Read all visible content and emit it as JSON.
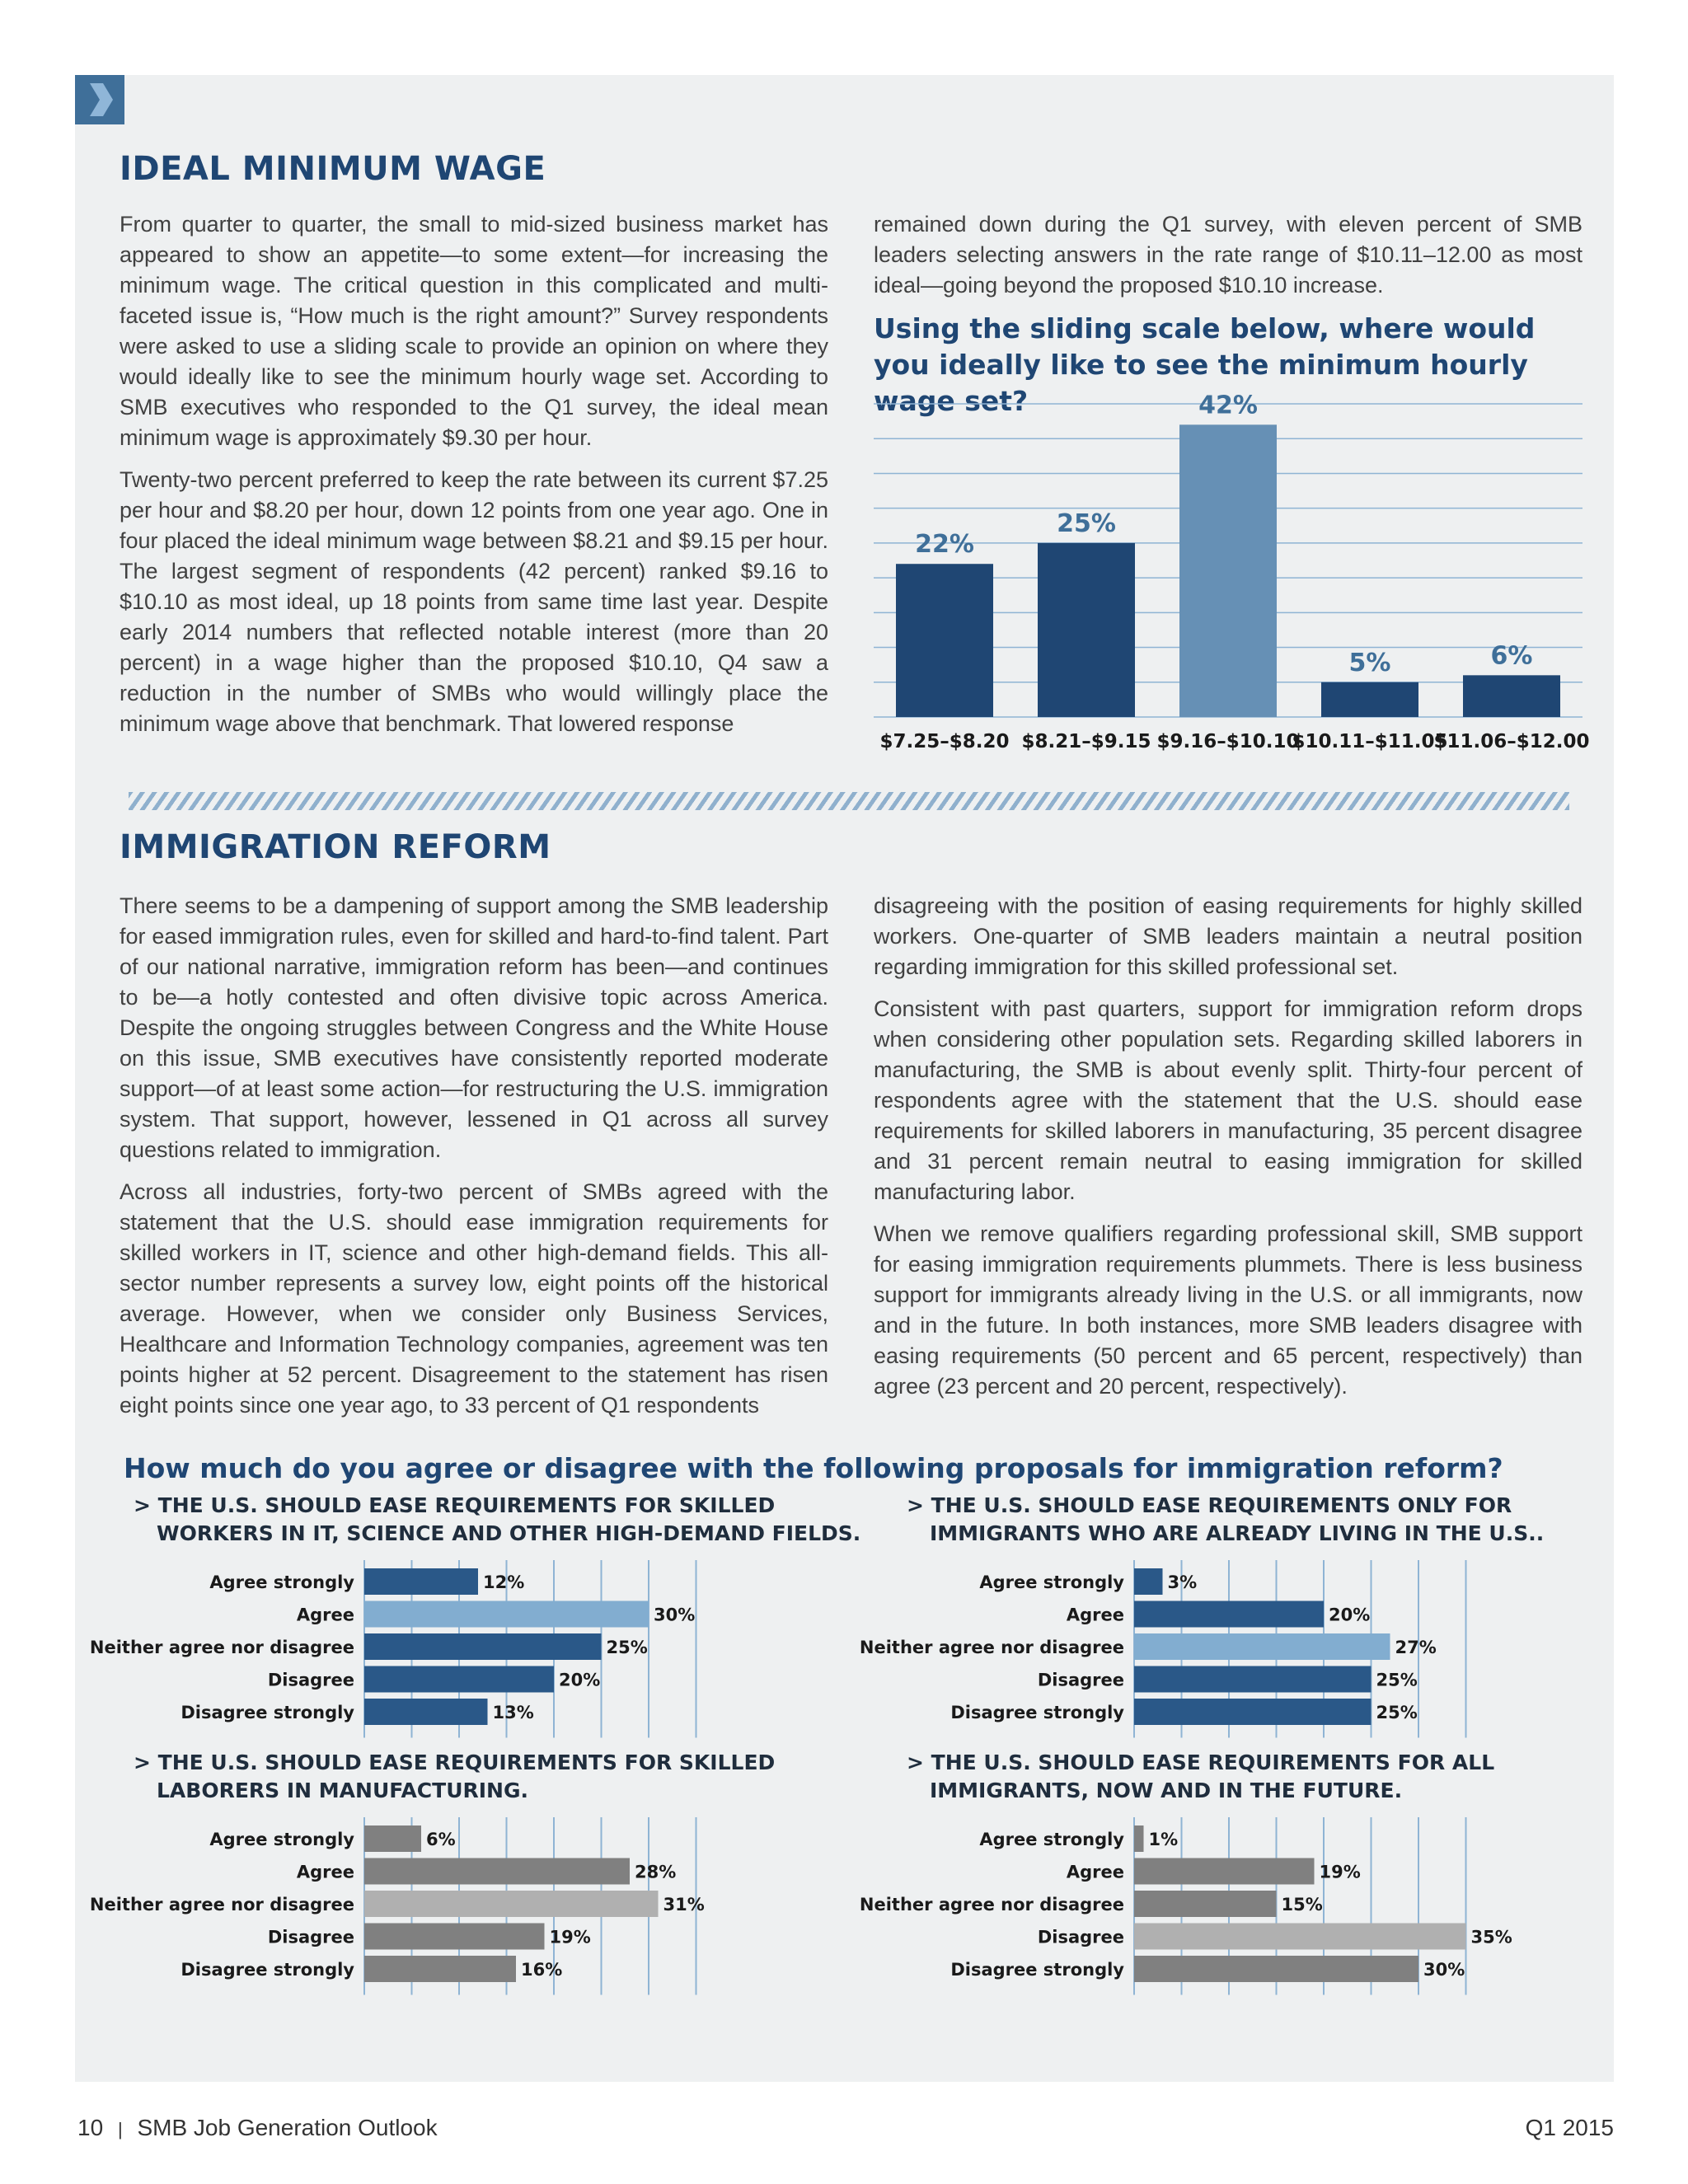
{
  "section1": {
    "title": "IDEAL MINIMUM WAGE",
    "col1": [
      "From quarter to quarter, the small to mid-sized business market has appeared to show an appetite—to some extent—for increasing the minimum wage. The critical question in this complicated and multi-faceted issue is, “How much is the right amount?” Survey respondents were asked to use a sliding scale to provide an opinion on where they would ideally like to see the minimum hourly wage set. According to SMB executives who responded to the Q1 survey, the ideal mean minimum wage is approximately $9.30 per hour.",
      "Twenty-two percent preferred to keep the rate between its current $7.25 per hour and $8.20 per hour, down 12 points from one year ago. One in four placed the ideal minimum wage between $8.21 and $9.15 per hour. The largest segment of respondents (42 percent) ranked $9.16 to $10.10 as most ideal, up 18 points from same time last year. Despite early 2014 numbers that reflected notable interest (more than 20 percent) in a wage higher than the proposed $10.10, Q4 saw a reduction in the number of SMBs who would willingly place the minimum wage above that benchmark. That lowered response"
    ],
    "col2": "remained down during the Q1 survey, with eleven percent of SMB leaders selecting answers in the rate range of $10.11–12.00 as most ideal—going beyond the proposed $10.10 increase.",
    "chart_title": "Using the sliding scale below, where would you ideally like to see the minimum hourly wage set?"
  },
  "section2": {
    "title": "IMMIGRATION REFORM",
    "col1": [
      "There seems to be a dampening of support among the SMB leadership for eased immigration rules, even for skilled and hard-to-find talent. Part of our national narrative, immigration reform has been—and continues to be—a hotly contested and often divisive topic across America. Despite the ongoing struggles between Congress and the White House on this issue, SMB executives have consistently reported moderate support—of at least some action—for restructuring the U.S. immigration system. That support, however, lessened in Q1 across all survey questions related to immigration.",
      "Across all industries, forty-two percent of SMBs agreed with the statement that the U.S. should ease immigration requirements for skilled workers in IT, science and other high-demand fields. This all-sector number represents a survey low, eight points off the historical average. However, when we consider only Business Services, Healthcare and Information Technology companies, agreement was ten points higher at 52 percent. Disagreement to the statement has risen eight points since one year ago, to 33 percent of Q1 respondents"
    ],
    "col2": [
      "disagreeing with the position of easing requirements for highly skilled workers. One-quarter of SMB leaders maintain a neutral position regarding immigration for this skilled professional set.",
      "Consistent with past quarters, support for immigration reform drops when considering other population sets. Regarding skilled laborers in manufacturing, the SMB is about evenly split. Thirty-four percent of respondents agree with the statement that the U.S. should ease requirements for skilled laborers in manufacturing, 35 percent disagree and 31 percent remain neutral to easing immigration for skilled manufacturing labor.",
      "When we remove qualifiers regarding professional skill, SMB support for easing immigration requirements plummets. There is less business support for immigrants already living in the U.S. or all immigrants, now and in the future. In both instances, more SMB leaders disagree with easing requirements (50 percent and 65 percent, respectively) than agree (23 percent and 20 percent, respectively)."
    ],
    "chart_title": "How much do you agree or disagree with the following proposals for immigration reform?"
  },
  "colors": {
    "navy": "#1f4673",
    "bar_dark_blue": "#1f4673",
    "bar_light_blue": "#6690b5",
    "bar_gray": "#808080",
    "bar_light_gray": "#b0b0b0",
    "bar_hbar_blue": "#2a5888",
    "bar_hbar_light": "#82add0"
  },
  "chart_data": [
    {
      "type": "bar",
      "title": "Using the sliding scale below, where would you ideally like to see the minimum hourly wage set?",
      "categories": [
        "$7.25–$8.20",
        "$8.21–$9.15",
        "$9.16–$10.10",
        "$10.11–$11.05",
        "$11.06–$12.00"
      ],
      "values": [
        22,
        25,
        42,
        5,
        6
      ],
      "labels": [
        "22%",
        "25%",
        "42%",
        "5%",
        "6%"
      ],
      "highlight_index": 2,
      "ylim": [
        0,
        45
      ],
      "grid": true
    },
    {
      "type": "bar",
      "orientation": "horizontal",
      "title": "> THE U.S. SHOULD EASE REQUIREMENTS FOR SKILLED WORKERS IN IT, SCIENCE AND OTHER HIGH-DEMAND FIELDS.",
      "title_lines": [
        "> THE U.S. SHOULD EASE REQUIREMENTS FOR SKILLED",
        "WORKERS IN IT, SCIENCE AND OTHER HIGH-DEMAND FIELDS."
      ],
      "categories": [
        "Agree strongly",
        "Agree",
        "Neither agree nor disagree",
        "Disagree",
        "Disagree strongly"
      ],
      "values": [
        12,
        30,
        25,
        20,
        13
      ],
      "labels": [
        "12%",
        "30%",
        "25%",
        "20%",
        "13%"
      ],
      "highlight_index": 1,
      "palette": "blue",
      "xlim": [
        0,
        35
      ]
    },
    {
      "type": "bar",
      "orientation": "horizontal",
      "title": "> THE U.S. SHOULD EASE REQUIREMENTS ONLY FOR IMMIGRANTS WHO ARE ALREADY LIVING IN THE U.S..",
      "title_lines": [
        "> THE U.S. SHOULD EASE REQUIREMENTS ONLY FOR",
        "IMMIGRANTS WHO ARE ALREADY LIVING IN THE U.S.."
      ],
      "categories": [
        "Agree strongly",
        "Agree",
        "Neither agree nor disagree",
        "Disagree",
        "Disagree strongly"
      ],
      "values": [
        3,
        20,
        27,
        25,
        25
      ],
      "labels": [
        "3%",
        "20%",
        "27%",
        "25%",
        "25%"
      ],
      "highlight_index": 2,
      "palette": "blue",
      "xlim": [
        0,
        35
      ]
    },
    {
      "type": "bar",
      "orientation": "horizontal",
      "title": "> THE U.S. SHOULD EASE REQUIREMENTS FOR SKILLED LABORERS IN MANUFACTURING.",
      "title_lines": [
        "> THE U.S. SHOULD EASE REQUIREMENTS FOR SKILLED",
        "LABORERS IN MANUFACTURING."
      ],
      "categories": [
        "Agree strongly",
        "Agree",
        "Neither agree nor disagree",
        "Disagree",
        "Disagree strongly"
      ],
      "values": [
        6,
        28,
        31,
        19,
        16
      ],
      "labels": [
        "6%",
        "28%",
        "31%",
        "19%",
        "16%"
      ],
      "highlight_index": 2,
      "palette": "gray",
      "xlim": [
        0,
        35
      ]
    },
    {
      "type": "bar",
      "orientation": "horizontal",
      "title": "> THE U.S. SHOULD EASE REQUIREMENTS FOR ALL IMMIGRANTS, NOW AND IN THE FUTURE.",
      "title_lines": [
        "> THE U.S. SHOULD EASE REQUIREMENTS FOR ALL",
        "IMMIGRANTS, NOW AND IN THE FUTURE."
      ],
      "categories": [
        "Agree strongly",
        "Agree",
        "Neither agree nor disagree",
        "Disagree",
        "Disagree strongly"
      ],
      "values": [
        1,
        19,
        15,
        35,
        30
      ],
      "labels": [
        "1%",
        "19%",
        "15%",
        "35%",
        "30%"
      ],
      "highlight_index": 3,
      "palette": "gray",
      "xlim": [
        0,
        35
      ]
    }
  ],
  "footer": {
    "page": "10",
    "separator": "|",
    "publication": "SMB Job Generation Outlook",
    "quarter": "Q1 2015"
  }
}
